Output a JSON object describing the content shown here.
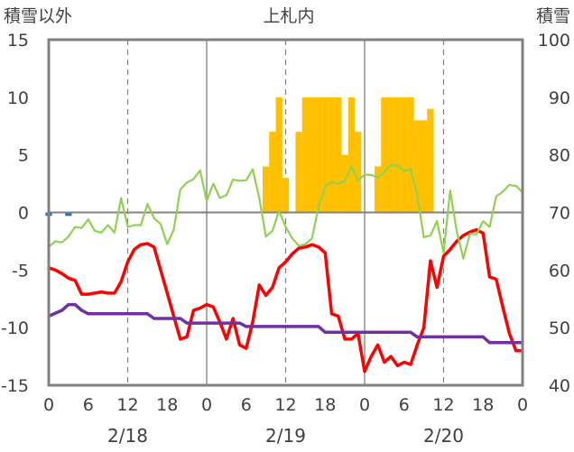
{
  "chart_data": {
    "type": "bar+line",
    "title": "上札内",
    "left_axis_label": "積雪以外",
    "right_axis_label": "積雪",
    "left_ylim": [
      -15,
      15
    ],
    "left_yticks": [
      "15",
      "10",
      "5",
      "0",
      "-5",
      "-10",
      "-15"
    ],
    "right_ylim": [
      40,
      100
    ],
    "right_yticks": [
      "100",
      "90",
      "80",
      "70",
      "60",
      "50",
      "40"
    ],
    "x_range_hours": [
      0,
      72
    ],
    "x_tick_labels": [
      "0",
      "6",
      "12",
      "18",
      "0",
      "6",
      "12",
      "18",
      "0",
      "6",
      "12",
      "18",
      "0"
    ],
    "day_labels": [
      "2/18",
      "2/19",
      "2/20"
    ],
    "grid": "vertical dashed at 12h, solid at day boundaries",
    "colors": {
      "orange": "#ffc000",
      "blue": "#2e75b6",
      "red": "#ff0000",
      "purple": "#7030a0",
      "green": "#92d050",
      "axis": "#808080"
    },
    "series": [
      {
        "color": "orange",
        "kind": "bar",
        "axis": "left",
        "hours": [
          33,
          34,
          35,
          36,
          37,
          38,
          39,
          40,
          41,
          42,
          43,
          44,
          45,
          46,
          47,
          48,
          49,
          50,
          51,
          52,
          53,
          54,
          55,
          56,
          57,
          58,
          59
        ],
        "values": [
          4,
          7,
          10,
          3,
          0,
          7,
          10,
          10,
          10,
          10,
          10,
          10,
          5,
          10,
          7,
          0,
          0,
          4,
          10,
          10,
          10,
          10,
          10,
          8,
          8,
          9,
          0
        ]
      },
      {
        "color": "blue",
        "kind": "bar",
        "axis": "left",
        "hours": [
          0,
          3
        ],
        "values": [
          -0.3,
          -0.3
        ]
      },
      {
        "color": "red",
        "kind": "line",
        "axis": "left",
        "x": [
          0,
          1,
          2,
          3,
          4,
          5,
          6,
          7,
          8,
          9,
          10,
          11,
          12,
          13,
          14,
          15,
          16,
          17,
          18,
          19,
          20,
          21,
          22,
          23,
          24,
          25,
          26,
          27,
          28,
          29,
          30,
          31,
          32,
          33,
          34,
          35,
          36,
          37,
          38,
          39,
          40,
          41,
          42,
          43,
          44,
          45,
          46,
          47,
          48,
          49,
          50,
          51,
          52,
          53,
          54,
          55,
          56,
          57,
          58,
          59,
          60,
          61,
          62,
          63,
          64,
          65,
          66,
          67,
          68,
          69,
          70,
          71,
          72
        ],
        "y": [
          -4.8,
          -5,
          -5.3,
          -5.7,
          -5.9,
          -7.1,
          -7.1,
          -7.0,
          -6.9,
          -7.0,
          -7.0,
          -6.0,
          -4.3,
          -3.2,
          -2.8,
          -2.7,
          -3.0,
          -5.0,
          -7.0,
          -9.0,
          -11.0,
          -10.8,
          -8.5,
          -8.3,
          -8.0,
          -8.2,
          -9.5,
          -11.0,
          -9.2,
          -11.5,
          -11.8,
          -9.5,
          -6.3,
          -7.2,
          -6.5,
          -4.8,
          -4.3,
          -3.6,
          -3.1,
          -3.0,
          -2.8,
          -3.0,
          -3.5,
          -8.8,
          -9.0,
          -11.0,
          -11.0,
          -10.5,
          -13.8,
          -12.5,
          -11.5,
          -13.0,
          -12.5,
          -13.3,
          -13.0,
          -13.2,
          -11.5,
          -10.0,
          -4.2,
          -6.5,
          -3.8,
          -3.2,
          -2.5,
          -2.0,
          -1.7,
          -1.5,
          -1.8,
          -5.6,
          -5.8,
          -8.2,
          -10.5,
          -12.0,
          -12.0
        ]
      },
      {
        "color": "purple",
        "kind": "line",
        "axis": "left",
        "x": [
          0,
          2,
          3,
          4,
          5,
          6,
          8,
          10,
          12,
          13,
          14,
          15,
          16,
          17,
          18,
          19,
          20,
          21,
          22,
          23,
          24,
          25,
          26,
          27,
          28,
          29,
          30,
          31,
          32,
          33,
          34,
          35,
          36,
          37,
          38,
          39,
          40,
          41,
          42,
          43,
          44,
          45,
          46,
          47,
          48,
          49,
          50,
          51,
          52,
          53,
          54,
          55,
          56,
          57,
          58,
          59,
          60,
          61,
          62,
          63,
          64,
          65,
          66,
          67,
          68,
          69,
          70,
          71,
          72
        ],
        "y": [
          -9,
          -8.5,
          -8,
          -8,
          -8.5,
          -8.8,
          -8.8,
          -8.8,
          -8.8,
          -8.8,
          -8.8,
          -8.8,
          -9.2,
          -9.2,
          -9.2,
          -9.2,
          -9.2,
          -9.6,
          -9.6,
          -9.6,
          -9.6,
          -9.6,
          -9.6,
          -9.6,
          -9.6,
          -9.6,
          -9.9,
          -9.9,
          -9.9,
          -9.9,
          -9.9,
          -9.9,
          -9.9,
          -9.9,
          -9.9,
          -9.9,
          -9.9,
          -9.9,
          -10.4,
          -10.4,
          -10.4,
          -10.4,
          -10.4,
          -10.4,
          -10.4,
          -10.4,
          -10.4,
          -10.4,
          -10.4,
          -10.4,
          -10.4,
          -10.4,
          -10.8,
          -10.8,
          -10.8,
          -10.8,
          -10.8,
          -10.8,
          -10.8,
          -10.8,
          -10.8,
          -10.8,
          -10.8,
          -11.3,
          -11.3,
          -11.3,
          -11.3,
          -11.3,
          -11.3
        ]
      },
      {
        "color": "green",
        "kind": "line",
        "axis": "right",
        "x": [
          0,
          1,
          2,
          3,
          4,
          5,
          6,
          7,
          8,
          9,
          10,
          11,
          12,
          13,
          14,
          15,
          16,
          17,
          18,
          19,
          20,
          21,
          22,
          23,
          24,
          25,
          26,
          27,
          28,
          29,
          30,
          31,
          32,
          33,
          34,
          35,
          36,
          37,
          38,
          39,
          40,
          41,
          42,
          43,
          44,
          45,
          46,
          47,
          48,
          49,
          50,
          51,
          52,
          53,
          54,
          55,
          56,
          57,
          58,
          59,
          60,
          61,
          62,
          63,
          64,
          65,
          66,
          67,
          68,
          69,
          70,
          71,
          72
        ],
        "y": [
          64,
          65,
          64.8,
          65.8,
          67.5,
          67.3,
          68.8,
          66.8,
          66.5,
          67.8,
          66.5,
          72.5,
          67.5,
          67.8,
          67.8,
          71.5,
          69,
          68,
          64.5,
          67,
          74,
          75.2,
          75.8,
          77.3,
          72,
          75,
          72.5,
          73,
          75.7,
          75.5,
          75.6,
          77.5,
          72.5,
          65.8,
          66.8,
          70.3,
          67.5,
          65.5,
          64.2,
          64.5,
          65.5,
          71,
          74.5,
          75.3,
          75,
          75.5,
          78,
          75.5,
          76.6,
          76.5,
          76.1,
          77,
          78.3,
          78.1,
          77.2,
          77.6,
          73,
          65.7,
          66,
          68.5,
          63,
          73.8,
          66.7,
          62,
          66.3,
          66.2,
          68.5,
          67.5,
          72.8,
          73.6,
          74.8,
          74.6,
          73.5
        ]
      }
    ]
  }
}
